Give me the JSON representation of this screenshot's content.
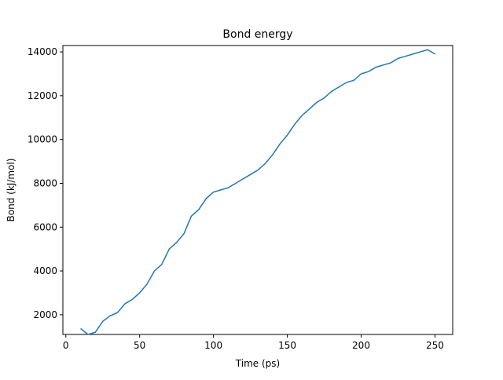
{
  "chart_data": {
    "type": "line",
    "title": "Bond energy",
    "x_label": "Time (ps)",
    "y_label": "Bond (kJ/mol)",
    "x": [
      10,
      15,
      20,
      25,
      30,
      35,
      40,
      45,
      50,
      55,
      60,
      65,
      70,
      75,
      80,
      85,
      90,
      95,
      100,
      105,
      110,
      115,
      120,
      125,
      130,
      135,
      140,
      145,
      150,
      155,
      160,
      165,
      170,
      175,
      180,
      185,
      190,
      195,
      200,
      205,
      210,
      215,
      220,
      225,
      230,
      235,
      240,
      245,
      250
    ],
    "series": [
      {
        "name": "Bond",
        "color": "#1f77b4",
        "values": [
          1370,
          1100,
          1200,
          1700,
          1950,
          2100,
          2500,
          2700,
          3000,
          3400,
          4000,
          4300,
          5000,
          5300,
          5700,
          6500,
          6800,
          7300,
          7600,
          7700,
          7800,
          8000,
          8200,
          8400,
          8600,
          8900,
          9300,
          9800,
          10200,
          10700,
          11100,
          11400,
          11700,
          11900,
          12200,
          12400,
          12600,
          12700,
          13000,
          13100,
          13300,
          13400,
          13500,
          13700,
          13800,
          13900,
          14000,
          14100,
          13900
        ]
      }
    ],
    "xlim": [
      -2,
      262
    ],
    "ylim": [
      1100,
      14290
    ],
    "xticks": [
      0,
      50,
      100,
      150,
      200,
      250
    ],
    "yticks": [
      2000,
      4000,
      6000,
      8000,
      10000,
      12000,
      14000
    ]
  }
}
